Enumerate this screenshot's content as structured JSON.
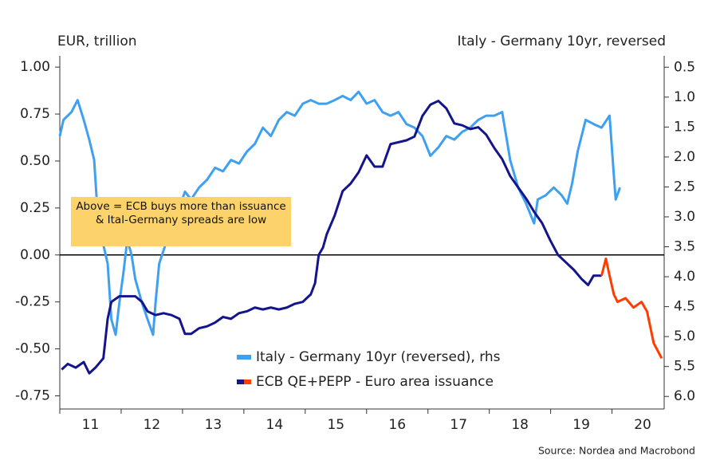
{
  "chart_data": {
    "type": "line",
    "y_label": "EUR, trillion",
    "y2_label": "Italy - Germany 10yr, reversed",
    "annotation": "Above = ECB buys more than issuance & Ital-Germany spreads are low",
    "source": "Source: Nordea and Macrobond",
    "xlim": [
      11,
      20.85
    ],
    "xticks": [
      11,
      12,
      13,
      14,
      15,
      16,
      17,
      18,
      19,
      20
    ],
    "ylim": [
      -0.82,
      1.06
    ],
    "yticks": [
      {
        "value": -0.75,
        "label": "-0.75"
      },
      {
        "value": -0.5,
        "label": "-0.50"
      },
      {
        "value": -0.25,
        "label": "-0.25"
      },
      {
        "value": 0,
        "label": "0.00"
      },
      {
        "value": 0.25,
        "label": "0.25"
      },
      {
        "value": 0.5,
        "label": "0.50"
      },
      {
        "value": 0.75,
        "label": "0.75"
      },
      {
        "value": 1,
        "label": "1.00"
      }
    ],
    "y2lim": [
      6.21,
      0.31
    ],
    "y2ticks": [
      0.5,
      {
        "value": 1,
        "label": "1.0"
      },
      1.5,
      {
        "value": 2,
        "label": "2.0"
      },
      2.5,
      {
        "value": 3,
        "label": "3.0"
      },
      3.5,
      {
        "value": 4,
        "label": "4.0"
      },
      4.5,
      {
        "value": 5,
        "label": "5.0"
      },
      5.5,
      {
        "value": 6,
        "label": "6.0"
      }
    ],
    "zero_line": true,
    "series": [
      {
        "name": "Italy - Germany 10yr (reversed), rhs",
        "color": "#3fa0f0",
        "axis": "y2",
        "x": [
          11.0,
          11.06,
          11.19,
          11.29,
          11.39,
          11.48,
          11.56,
          11.61,
          11.69,
          11.78,
          11.84,
          11.91,
          11.97,
          12.04,
          12.1,
          12.17,
          12.23,
          12.34,
          12.43,
          12.52,
          12.56,
          12.62,
          12.75,
          12.86,
          12.95,
          13.04,
          13.14,
          13.27,
          13.4,
          13.53,
          13.66,
          13.79,
          13.92,
          14.05,
          14.18,
          14.31,
          14.44,
          14.57,
          14.7,
          14.83,
          14.96,
          15.09,
          15.22,
          15.35,
          15.48,
          15.61,
          15.74,
          15.87,
          16.0,
          16.13,
          16.26,
          16.39,
          16.52,
          16.65,
          16.78,
          16.91,
          17.04,
          17.17,
          17.3,
          17.43,
          17.56,
          17.69,
          17.82,
          17.95,
          18.08,
          18.21,
          18.34,
          18.47,
          18.6,
          18.73,
          18.79,
          18.92,
          19.05,
          19.18,
          19.27,
          19.35,
          19.44,
          19.57,
          19.7,
          19.83,
          19.96,
          20.03,
          20.06,
          20.13
        ],
        "values": [
          1.65,
          1.38,
          1.25,
          1.05,
          1.38,
          1.71,
          2.05,
          2.84,
          3.38,
          3.78,
          4.71,
          4.97,
          4.44,
          3.91,
          3.38,
          3.64,
          4.04,
          4.44,
          4.71,
          4.97,
          4.44,
          3.78,
          3.38,
          3.38,
          2.84,
          2.58,
          2.71,
          2.51,
          2.38,
          2.18,
          2.24,
          2.05,
          2.11,
          1.91,
          1.78,
          1.51,
          1.65,
          1.38,
          1.25,
          1.31,
          1.11,
          1.05,
          1.11,
          1.11,
          1.05,
          0.98,
          1.05,
          0.91,
          1.11,
          1.05,
          1.25,
          1.31,
          1.25,
          1.45,
          1.51,
          1.65,
          1.98,
          1.84,
          1.65,
          1.71,
          1.58,
          1.51,
          1.38,
          1.31,
          1.31,
          1.25,
          2.05,
          2.51,
          2.78,
          3.11,
          2.71,
          2.64,
          2.51,
          2.64,
          2.78,
          2.44,
          1.91,
          1.38,
          1.45,
          1.51,
          1.31,
          2.31,
          2.71,
          2.51
        ]
      },
      {
        "name": "ECB QE+PEPP - Euro area issuance",
        "color": "#14148c",
        "highlight_color": "#ff3d00",
        "highlight_from_x": 19.83,
        "axis": "y",
        "x": [
          11.03,
          11.13,
          11.26,
          11.39,
          11.48,
          11.58,
          11.71,
          11.78,
          11.84,
          11.97,
          12.1,
          12.23,
          12.34,
          12.43,
          12.56,
          12.69,
          12.82,
          12.95,
          13.04,
          13.14,
          13.27,
          13.4,
          13.53,
          13.66,
          13.79,
          13.92,
          14.05,
          14.18,
          14.31,
          14.44,
          14.57,
          14.7,
          14.83,
          14.96,
          15.09,
          15.16,
          15.22,
          15.29,
          15.35,
          15.48,
          15.61,
          15.74,
          15.87,
          16.0,
          16.13,
          16.26,
          16.39,
          16.52,
          16.65,
          16.78,
          16.91,
          17.04,
          17.17,
          17.3,
          17.43,
          17.56,
          17.69,
          17.82,
          17.95,
          18.08,
          18.21,
          18.34,
          18.47,
          18.6,
          18.73,
          18.86,
          18.99,
          19.12,
          19.25,
          19.38,
          19.51,
          19.61,
          19.7,
          19.83,
          19.9,
          19.96,
          20.03,
          20.09,
          20.22,
          20.35,
          20.48,
          20.57,
          20.68,
          20.81
        ],
        "values": [
          -0.61,
          -0.58,
          -0.6,
          -0.57,
          -0.63,
          -0.6,
          -0.55,
          -0.34,
          -0.25,
          -0.22,
          -0.22,
          -0.22,
          -0.25,
          -0.3,
          -0.32,
          -0.31,
          -0.32,
          -0.34,
          -0.42,
          -0.42,
          -0.39,
          -0.38,
          -0.36,
          -0.33,
          -0.34,
          -0.31,
          -0.3,
          -0.28,
          -0.29,
          -0.28,
          -0.29,
          -0.28,
          -0.26,
          -0.25,
          -0.21,
          -0.15,
          0.0,
          0.04,
          0.11,
          0.21,
          0.34,
          0.38,
          0.44,
          0.53,
          0.47,
          0.47,
          0.59,
          0.6,
          0.61,
          0.63,
          0.74,
          0.8,
          0.82,
          0.78,
          0.7,
          0.69,
          0.67,
          0.68,
          0.64,
          0.57,
          0.51,
          0.42,
          0.36,
          0.3,
          0.23,
          0.17,
          0.08,
          0.0,
          -0.04,
          -0.08,
          -0.13,
          -0.16,
          -0.11,
          -0.11,
          -0.02,
          -0.11,
          -0.21,
          -0.25,
          -0.23,
          -0.28,
          -0.25,
          -0.3,
          -0.47,
          -0.55
        ]
      }
    ]
  }
}
